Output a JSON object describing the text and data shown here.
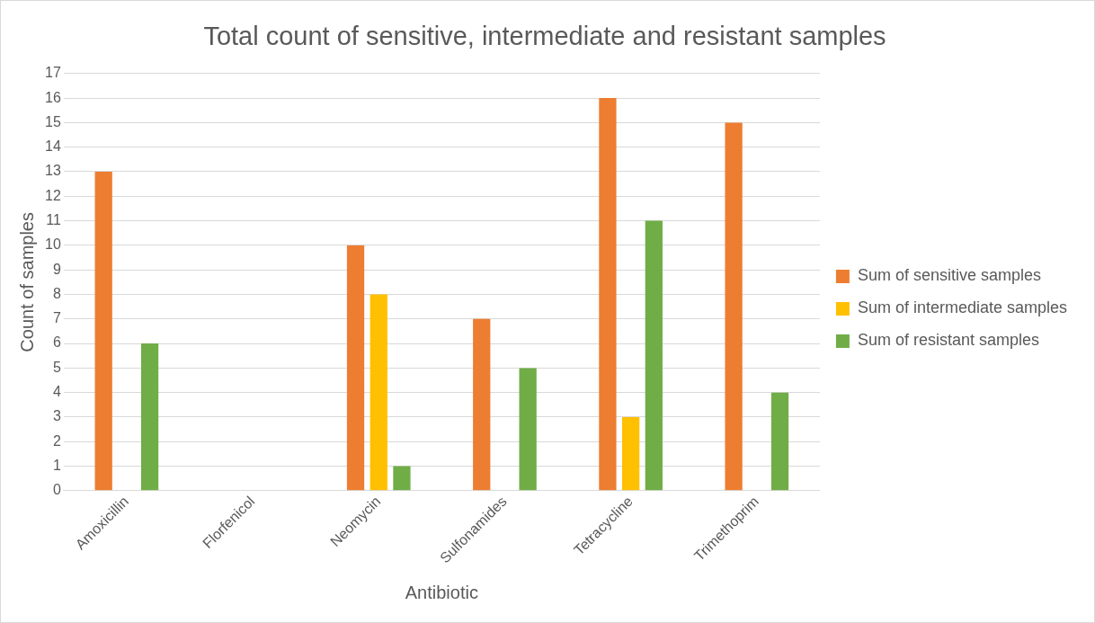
{
  "chart_data": {
    "type": "bar",
    "title": "Total count of sensitive, intermediate and resistant samples",
    "xlabel": "Antibiotic",
    "ylabel": "Count of samples",
    "categories": [
      "Amoxicillin",
      "Florfenicol",
      "Neomycin",
      "Sulfonamides",
      "Tetracycline",
      "Trimethoprim"
    ],
    "series": [
      {
        "name": "Sum of sensitive samples",
        "color": "#ed7d31",
        "values": [
          13,
          null,
          10,
          7,
          16,
          15
        ]
      },
      {
        "name": "Sum of intermediate samples",
        "color": "#ffc000",
        "values": [
          null,
          null,
          8,
          null,
          3,
          null
        ]
      },
      {
        "name": "Sum of resistant samples",
        "color": "#70ad47",
        "values": [
          6,
          null,
          1,
          5,
          11,
          4
        ]
      }
    ],
    "ylim": [
      0,
      17
    ],
    "yticks": [
      0,
      1,
      2,
      3,
      4,
      5,
      6,
      7,
      8,
      9,
      10,
      11,
      12,
      13,
      14,
      15,
      16,
      17
    ],
    "grid": "y",
    "legend": "right"
  }
}
